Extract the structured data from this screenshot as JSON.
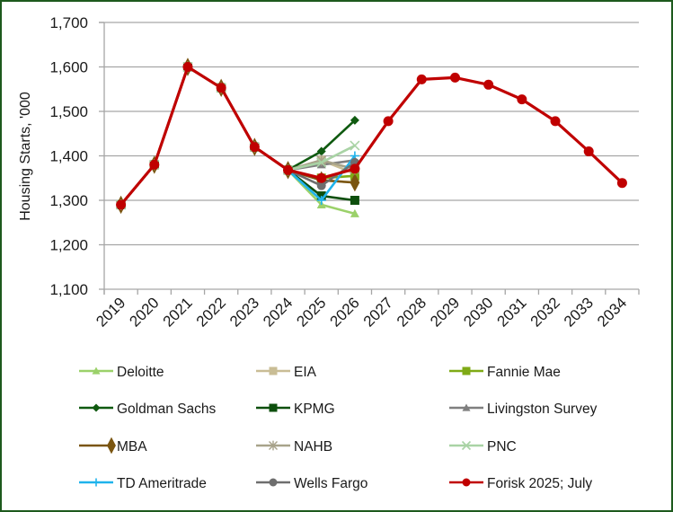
{
  "chart_data": {
    "type": "line",
    "title": "",
    "xlabel": "",
    "ylabel": "Housing Starts, '000",
    "ylim": [
      1100,
      1700
    ],
    "yticks": [
      1100,
      1200,
      1300,
      1400,
      1500,
      1600,
      1700
    ],
    "ytick_labels": [
      "1,100",
      "1,200",
      "1,300",
      "1,400",
      "1,500",
      "1,600",
      "1,700"
    ],
    "categories": [
      "2019",
      "2020",
      "2021",
      "2022",
      "2023",
      "2024",
      "2025",
      "2026",
      "2027",
      "2028",
      "2029",
      "2030",
      "2031",
      "2032",
      "2033",
      "2034"
    ],
    "grid": "horizontal",
    "legend_position": "bottom",
    "series": [
      {
        "name": "Deloitte",
        "color": "#9bd16a",
        "marker": "triangle",
        "values": [
          1290,
          1380,
          1600,
          1553,
          1420,
          1368,
          1290,
          1270,
          null,
          null,
          null,
          null,
          null,
          null,
          null,
          null
        ]
      },
      {
        "name": "EIA",
        "color": "#c9bd95",
        "marker": "square",
        "values": [
          1290,
          1380,
          1600,
          1553,
          1420,
          1368,
          1390,
          1360,
          null,
          null,
          null,
          null,
          null,
          null,
          null,
          null
        ]
      },
      {
        "name": "Fannie Mae",
        "color": "#7faa16",
        "marker": "square",
        "values": [
          1290,
          1380,
          1600,
          1553,
          1420,
          1368,
          1350,
          1355,
          null,
          null,
          null,
          null,
          null,
          null,
          null,
          null
        ]
      },
      {
        "name": "Goldman Sachs",
        "color": "#0f5a10",
        "marker": "diamond",
        "values": [
          1290,
          1380,
          1600,
          1553,
          1420,
          1368,
          1410,
          1480,
          null,
          null,
          null,
          null,
          null,
          null,
          null,
          null
        ]
      },
      {
        "name": "KPMG",
        "color": "#0d4f0d",
        "marker": "square",
        "values": [
          1290,
          1380,
          1600,
          1553,
          1420,
          1368,
          1310,
          1300,
          null,
          null,
          null,
          null,
          null,
          null,
          null,
          null
        ]
      },
      {
        "name": "Livingston Survey",
        "color": "#7f7f7f",
        "marker": "triangle",
        "values": [
          1290,
          1380,
          1600,
          1553,
          1420,
          1368,
          1380,
          1390,
          null,
          null,
          null,
          null,
          null,
          null,
          null,
          null
        ]
      },
      {
        "name": "MBA",
        "color": "#7a5510",
        "marker": "big-diamond",
        "values": [
          1290,
          1380,
          1600,
          1553,
          1420,
          1368,
          1345,
          1340,
          null,
          null,
          null,
          null,
          null,
          null,
          null,
          null
        ]
      },
      {
        "name": "NAHB",
        "color": "#a8a38a",
        "marker": "star",
        "values": [
          1290,
          1380,
          1600,
          1553,
          1420,
          1368,
          1390,
          1370,
          null,
          null,
          null,
          null,
          null,
          null,
          null,
          null
        ]
      },
      {
        "name": "PNC",
        "color": "#a9d3a5",
        "marker": "x",
        "values": [
          1290,
          1380,
          1600,
          1553,
          1420,
          1368,
          1385,
          1423,
          null,
          null,
          null,
          null,
          null,
          null,
          null,
          null
        ]
      },
      {
        "name": "TD Ameritrade",
        "color": "#1fb3ec",
        "marker": "plus",
        "values": [
          1290,
          1380,
          1600,
          1553,
          1420,
          1368,
          1300,
          1400,
          null,
          null,
          null,
          null,
          null,
          null,
          null,
          null
        ]
      },
      {
        "name": "Wells Fargo",
        "color": "#6e6e6e",
        "marker": "circle",
        "values": [
          1290,
          1380,
          1600,
          1553,
          1420,
          1368,
          1333,
          1385,
          null,
          null,
          null,
          null,
          null,
          null,
          null,
          null
        ]
      },
      {
        "name": "Forisk 2025; July",
        "color": "#c00000",
        "marker": "circle",
        "values": [
          1290,
          1380,
          1600,
          1553,
          1420,
          1368,
          1350,
          1371,
          1478,
          1572,
          1576,
          1560,
          1527,
          1478,
          1410,
          1339
        ]
      }
    ]
  }
}
